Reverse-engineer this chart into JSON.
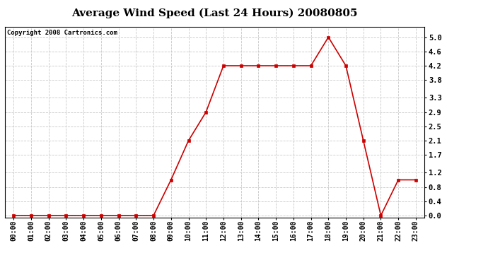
{
  "title": "Average Wind Speed (Last 24 Hours) 20080805",
  "copyright": "Copyright 2008 Cartronics.com",
  "x_labels": [
    "00:00",
    "01:00",
    "02:00",
    "03:00",
    "04:00",
    "05:00",
    "06:00",
    "07:00",
    "08:00",
    "09:00",
    "10:00",
    "11:00",
    "12:00",
    "13:00",
    "14:00",
    "15:00",
    "16:00",
    "17:00",
    "18:00",
    "19:00",
    "20:00",
    "21:00",
    "22:00",
    "23:00"
  ],
  "y_values": [
    0.0,
    0.0,
    0.0,
    0.0,
    0.0,
    0.0,
    0.0,
    0.0,
    0.0,
    1.0,
    2.1,
    2.9,
    4.2,
    4.2,
    4.2,
    4.2,
    4.2,
    4.2,
    5.0,
    4.2,
    2.1,
    0.0,
    1.0,
    1.0
  ],
  "line_color": "#cc0000",
  "marker": "s",
  "marker_size": 2.5,
  "background_color": "#ffffff",
  "plot_bg_color": "#ffffff",
  "grid_color": "#c8c8c8",
  "ylim": [
    -0.05,
    5.3
  ],
  "yticks": [
    0.0,
    0.4,
    0.8,
    1.2,
    1.7,
    2.1,
    2.5,
    2.9,
    3.3,
    3.8,
    4.2,
    4.6,
    5.0
  ],
  "title_fontsize": 11,
  "copyright_fontsize": 6.5,
  "tick_fontsize": 7,
  "ytick_fontsize": 7.5
}
